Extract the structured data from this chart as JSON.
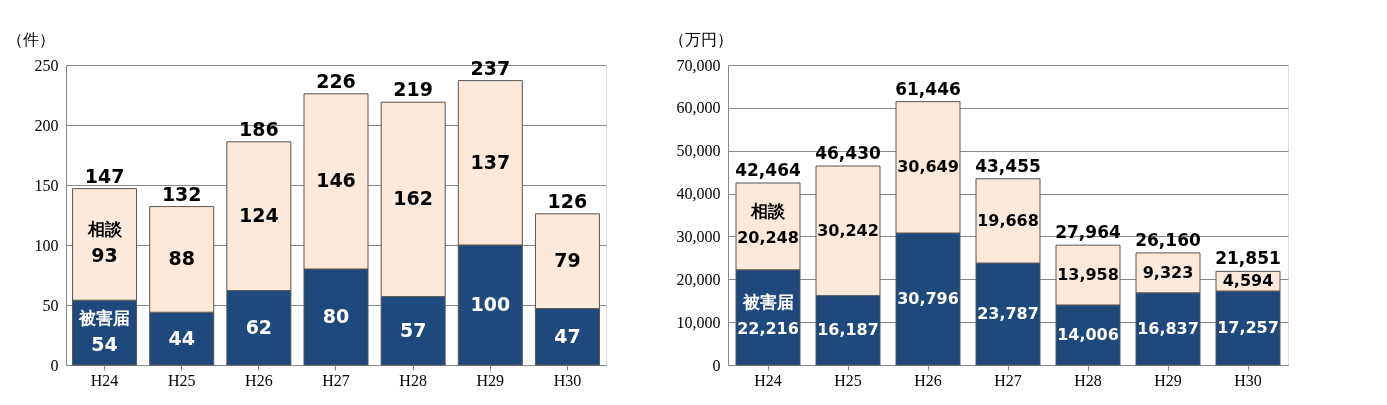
{
  "chart_data": [
    {
      "type": "bar",
      "stacked": true,
      "ylabel": "（件）",
      "categories": [
        "H24",
        "H25",
        "H26",
        "H27",
        "H28",
        "H29",
        "H30"
      ],
      "series": [
        {
          "name": "被害届",
          "color": "#1f497d",
          "values": [
            54,
            44,
            62,
            80,
            57,
            100,
            47
          ]
        },
        {
          "name": "相談",
          "color": "#fde9d9",
          "values": [
            93,
            88,
            124,
            146,
            162,
            137,
            79
          ]
        }
      ],
      "ylim": [
        0,
        250
      ],
      "yticks": [
        0,
        50,
        100,
        150,
        200,
        250
      ],
      "grid": "y",
      "data_labels": true,
      "totals": [
        "147",
        "132",
        "186",
        "226",
        "219",
        "237",
        "126"
      ]
    },
    {
      "type": "bar",
      "stacked": true,
      "ylabel": "（万円）",
      "categories": [
        "H24",
        "H25",
        "H26",
        "H27",
        "H28",
        "H29",
        "H30"
      ],
      "series": [
        {
          "name": "被害届",
          "color": "#1f497d",
          "values": [
            22216,
            16187,
            30796,
            23787,
            14006,
            16837,
            17257
          ],
          "value_labels": [
            "22,216",
            "16,187",
            "30,796",
            "23,787",
            "14,006",
            "16,837",
            "17,257"
          ]
        },
        {
          "name": "相談",
          "color": "#fde9d9",
          "values": [
            20248,
            30242,
            30649,
            19668,
            13958,
            9323,
            4594
          ],
          "value_labels": [
            "20,248",
            "30,242",
            "30,649",
            "19,668",
            "13,958",
            "9,323",
            "4,594"
          ]
        }
      ],
      "ylim": [
        0,
        70000
      ],
      "yticks": [
        0,
        {
          "value": 10000,
          "label": "10,000"
        },
        {
          "value": 20000,
          "label": "20,000"
        },
        {
          "value": 30000,
          "label": "30,000"
        },
        {
          "value": 40000,
          "label": "40,000"
        },
        {
          "value": 50000,
          "label": "50,000"
        },
        {
          "value": 60000,
          "label": "60,000"
        },
        {
          "value": 70000,
          "label": "70,000"
        }
      ],
      "grid": "y",
      "totals": [
        "42,464",
        "46,430",
        "61,446",
        "43,455",
        "27,964",
        "26,160",
        "21,851"
      ]
    }
  ]
}
